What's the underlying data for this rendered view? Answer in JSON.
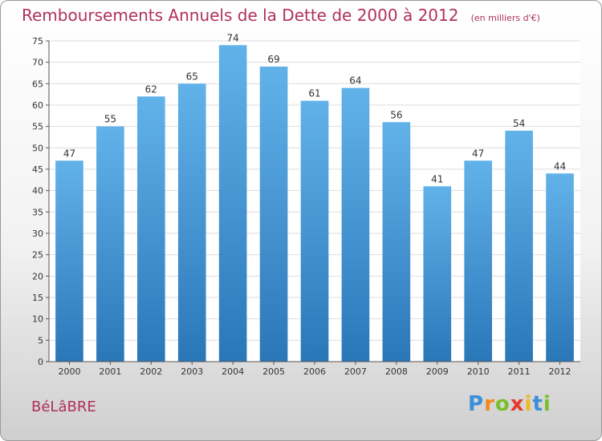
{
  "title": "Remboursements Annuels de la Dette de 2000 à 2012",
  "unit": "(en milliers d'€)",
  "commune": "BéLâBRE",
  "logo_letters": [
    {
      "ch": "P",
      "color": "#3a8fd8"
    },
    {
      "ch": "r",
      "color": "#f08a1c"
    },
    {
      "ch": "o",
      "color": "#7bbf2a"
    },
    {
      "ch": "x",
      "color": "#e63b2e"
    },
    {
      "ch": "i",
      "color": "#f0b81c"
    },
    {
      "ch": "t",
      "color": "#3a8fd8"
    },
    {
      "ch": "i",
      "color": "#7bbf2a"
    }
  ],
  "colors": {
    "bar_top": "#62b2ea",
    "bar_bottom": "#2a77b8",
    "axis": "#555555",
    "grid": "#dddddd"
  },
  "chart_data": {
    "type": "bar",
    "categories": [
      "2000",
      "2001",
      "2002",
      "2003",
      "2004",
      "2005",
      "2006",
      "2007",
      "2008",
      "2009",
      "2010",
      "2011",
      "2012"
    ],
    "values": [
      47,
      55,
      62,
      65,
      74,
      69,
      61,
      64,
      56,
      41,
      47,
      54,
      44
    ],
    "ylim": [
      0,
      75
    ],
    "yticks": [
      0,
      5,
      10,
      15,
      20,
      25,
      30,
      35,
      40,
      45,
      50,
      55,
      60,
      65,
      70,
      75
    ],
    "grid": true,
    "data_labels": true
  }
}
